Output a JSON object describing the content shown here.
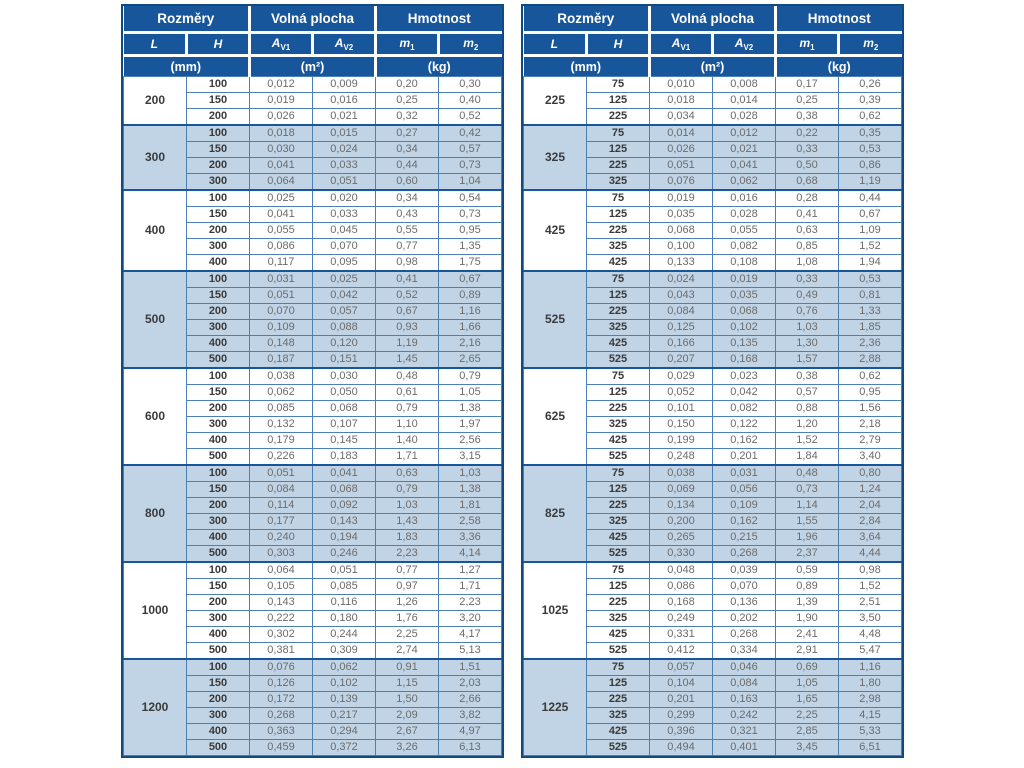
{
  "header": {
    "groups": [
      "Rozměry",
      "Volná plocha",
      "Hmotnost"
    ],
    "symbols": [
      {
        "base": "L",
        "sub": ""
      },
      {
        "base": "H",
        "sub": ""
      },
      {
        "base": "A",
        "sub": "V1"
      },
      {
        "base": "A",
        "sub": "V2"
      },
      {
        "base": "m",
        "sub": "1"
      },
      {
        "base": "m",
        "sub": "2"
      }
    ],
    "units": [
      "(mm)",
      "(m²)",
      "(kg)"
    ]
  },
  "colors": {
    "header_bg": "#17569a",
    "header_text": "#ffffff",
    "outer_border": "#12497f",
    "row_line": "#4a80b5",
    "alt_group_bg": "#c1d4e6",
    "label_text": "#3a3a3a",
    "value_text": "#6b6b6b"
  },
  "tables": [
    {
      "id": "left",
      "groups": [
        {
          "L": "200",
          "rows": [
            [
              "100",
              "0,012",
              "0,009",
              "0,20",
              "0,30"
            ],
            [
              "150",
              "0,019",
              "0,016",
              "0,25",
              "0,40"
            ],
            [
              "200",
              "0,026",
              "0,021",
              "0,32",
              "0,52"
            ]
          ]
        },
        {
          "L": "300",
          "rows": [
            [
              "100",
              "0,018",
              "0,015",
              "0,27",
              "0,42"
            ],
            [
              "150",
              "0,030",
              "0,024",
              "0,34",
              "0,57"
            ],
            [
              "200",
              "0,041",
              "0,033",
              "0,44",
              "0,73"
            ],
            [
              "300",
              "0,064",
              "0,051",
              "0,60",
              "1,04"
            ]
          ]
        },
        {
          "L": "400",
          "rows": [
            [
              "100",
              "0,025",
              "0,020",
              "0,34",
              "0,54"
            ],
            [
              "150",
              "0,041",
              "0,033",
              "0,43",
              "0,73"
            ],
            [
              "200",
              "0,055",
              "0,045",
              "0,55",
              "0,95"
            ],
            [
              "300",
              "0,086",
              "0,070",
              "0,77",
              "1,35"
            ],
            [
              "400",
              "0,117",
              "0,095",
              "0,98",
              "1,75"
            ]
          ]
        },
        {
          "L": "500",
          "rows": [
            [
              "100",
              "0,031",
              "0,025",
              "0,41",
              "0,67"
            ],
            [
              "150",
              "0,051",
              "0,042",
              "0,52",
              "0,89"
            ],
            [
              "200",
              "0,070",
              "0,057",
              "0,67",
              "1,16"
            ],
            [
              "300",
              "0,109",
              "0,088",
              "0,93",
              "1,66"
            ],
            [
              "400",
              "0,148",
              "0,120",
              "1,19",
              "2,16"
            ],
            [
              "500",
              "0,187",
              "0,151",
              "1,45",
              "2,65"
            ]
          ]
        },
        {
          "L": "600",
          "rows": [
            [
              "100",
              "0,038",
              "0,030",
              "0,48",
              "0,79"
            ],
            [
              "150",
              "0,062",
              "0,050",
              "0,61",
              "1,05"
            ],
            [
              "200",
              "0,085",
              "0,068",
              "0,79",
              "1,38"
            ],
            [
              "300",
              "0,132",
              "0,107",
              "1,10",
              "1,97"
            ],
            [
              "400",
              "0,179",
              "0,145",
              "1,40",
              "2,56"
            ],
            [
              "500",
              "0,226",
              "0,183",
              "1,71",
              "3,15"
            ]
          ]
        },
        {
          "L": "800",
          "rows": [
            [
              "100",
              "0,051",
              "0,041",
              "0,63",
              "1,03"
            ],
            [
              "150",
              "0,084",
              "0,068",
              "0,79",
              "1,38"
            ],
            [
              "200",
              "0,114",
              "0,092",
              "1,03",
              "1,81"
            ],
            [
              "300",
              "0,177",
              "0,143",
              "1,43",
              "2,58"
            ],
            [
              "400",
              "0,240",
              "0,194",
              "1,83",
              "3,36"
            ],
            [
              "500",
              "0,303",
              "0,246",
              "2,23",
              "4,14"
            ]
          ]
        },
        {
          "L": "1000",
          "rows": [
            [
              "100",
              "0,064",
              "0,051",
              "0,77",
              "1,27"
            ],
            [
              "150",
              "0,105",
              "0,085",
              "0,97",
              "1,71"
            ],
            [
              "200",
              "0,143",
              "0,116",
              "1,26",
              "2,23"
            ],
            [
              "300",
              "0,222",
              "0,180",
              "1,76",
              "3,20"
            ],
            [
              "400",
              "0,302",
              "0,244",
              "2,25",
              "4,17"
            ],
            [
              "500",
              "0,381",
              "0,309",
              "2,74",
              "5,13"
            ]
          ]
        },
        {
          "L": "1200",
          "rows": [
            [
              "100",
              "0,076",
              "0,062",
              "0,91",
              "1,51"
            ],
            [
              "150",
              "0,126",
              "0,102",
              "1,15",
              "2,03"
            ],
            [
              "200",
              "0,172",
              "0,139",
              "1,50",
              "2,66"
            ],
            [
              "300",
              "0,268",
              "0,217",
              "2,09",
              "3,82"
            ],
            [
              "400",
              "0,363",
              "0,294",
              "2,67",
              "4,97"
            ],
            [
              "500",
              "0,459",
              "0,372",
              "3,26",
              "6,13"
            ]
          ]
        }
      ]
    },
    {
      "id": "right",
      "groups": [
        {
          "L": "225",
          "rows": [
            [
              "75",
              "0,010",
              "0,008",
              "0,17",
              "0,26"
            ],
            [
              "125",
              "0,018",
              "0,014",
              "0,25",
              "0,39"
            ],
            [
              "225",
              "0,034",
              "0,028",
              "0,38",
              "0,62"
            ]
          ]
        },
        {
          "L": "325",
          "rows": [
            [
              "75",
              "0,014",
              "0,012",
              "0,22",
              "0,35"
            ],
            [
              "125",
              "0,026",
              "0,021",
              "0,33",
              "0,53"
            ],
            [
              "225",
              "0,051",
              "0,041",
              "0,50",
              "0,86"
            ],
            [
              "325",
              "0,076",
              "0,062",
              "0,68",
              "1,19"
            ]
          ]
        },
        {
          "L": "425",
          "rows": [
            [
              "75",
              "0,019",
              "0,016",
              "0,28",
              "0,44"
            ],
            [
              "125",
              "0,035",
              "0,028",
              "0,41",
              "0,67"
            ],
            [
              "225",
              "0,068",
              "0,055",
              "0,63",
              "1,09"
            ],
            [
              "325",
              "0,100",
              "0,082",
              "0,85",
              "1,52"
            ],
            [
              "425",
              "0,133",
              "0,108",
              "1,08",
              "1,94"
            ]
          ]
        },
        {
          "L": "525",
          "rows": [
            [
              "75",
              "0,024",
              "0,019",
              "0,33",
              "0,53"
            ],
            [
              "125",
              "0,043",
              "0,035",
              "0,49",
              "0,81"
            ],
            [
              "225",
              "0,084",
              "0,068",
              "0,76",
              "1,33"
            ],
            [
              "325",
              "0,125",
              "0,102",
              "1,03",
              "1,85"
            ],
            [
              "425",
              "0,166",
              "0,135",
              "1,30",
              "2,36"
            ],
            [
              "525",
              "0,207",
              "0,168",
              "1,57",
              "2,88"
            ]
          ]
        },
        {
          "L": "625",
          "rows": [
            [
              "75",
              "0,029",
              "0,023",
              "0,38",
              "0,62"
            ],
            [
              "125",
              "0,052",
              "0,042",
              "0,57",
              "0,95"
            ],
            [
              "225",
              "0,101",
              "0,082",
              "0,88",
              "1,56"
            ],
            [
              "325",
              "0,150",
              "0,122",
              "1,20",
              "2,18"
            ],
            [
              "425",
              "0,199",
              "0,162",
              "1,52",
              "2,79"
            ],
            [
              "525",
              "0,248",
              "0,201",
              "1,84",
              "3,40"
            ]
          ]
        },
        {
          "L": "825",
          "rows": [
            [
              "75",
              "0,038",
              "0,031",
              "0,48",
              "0,80"
            ],
            [
              "125",
              "0,069",
              "0,056",
              "0,73",
              "1,24"
            ],
            [
              "225",
              "0,134",
              "0,109",
              "1,14",
              "2,04"
            ],
            [
              "325",
              "0,200",
              "0,162",
              "1,55",
              "2,84"
            ],
            [
              "425",
              "0,265",
              "0,215",
              "1,96",
              "3,64"
            ],
            [
              "525",
              "0,330",
              "0,268",
              "2,37",
              "4,44"
            ]
          ]
        },
        {
          "L": "1025",
          "rows": [
            [
              "75",
              "0,048",
              "0,039",
              "0,59",
              "0,98"
            ],
            [
              "125",
              "0,086",
              "0,070",
              "0,89",
              "1,52"
            ],
            [
              "225",
              "0,168",
              "0,136",
              "1,39",
              "2,51"
            ],
            [
              "325",
              "0,249",
              "0,202",
              "1,90",
              "3,50"
            ],
            [
              "425",
              "0,331",
              "0,268",
              "2,41",
              "4,48"
            ],
            [
              "525",
              "0,412",
              "0,334",
              "2,91",
              "5,47"
            ]
          ]
        },
        {
          "L": "1225",
          "rows": [
            [
              "75",
              "0,057",
              "0,046",
              "0,69",
              "1,16"
            ],
            [
              "125",
              "0,104",
              "0,084",
              "1,05",
              "1,80"
            ],
            [
              "225",
              "0,201",
              "0,163",
              "1,65",
              "2,98"
            ],
            [
              "325",
              "0,299",
              "0,242",
              "2,25",
              "4,15"
            ],
            [
              "425",
              "0,396",
              "0,321",
              "2,85",
              "5,33"
            ],
            [
              "525",
              "0,494",
              "0,401",
              "3,45",
              "6,51"
            ]
          ]
        }
      ]
    }
  ]
}
